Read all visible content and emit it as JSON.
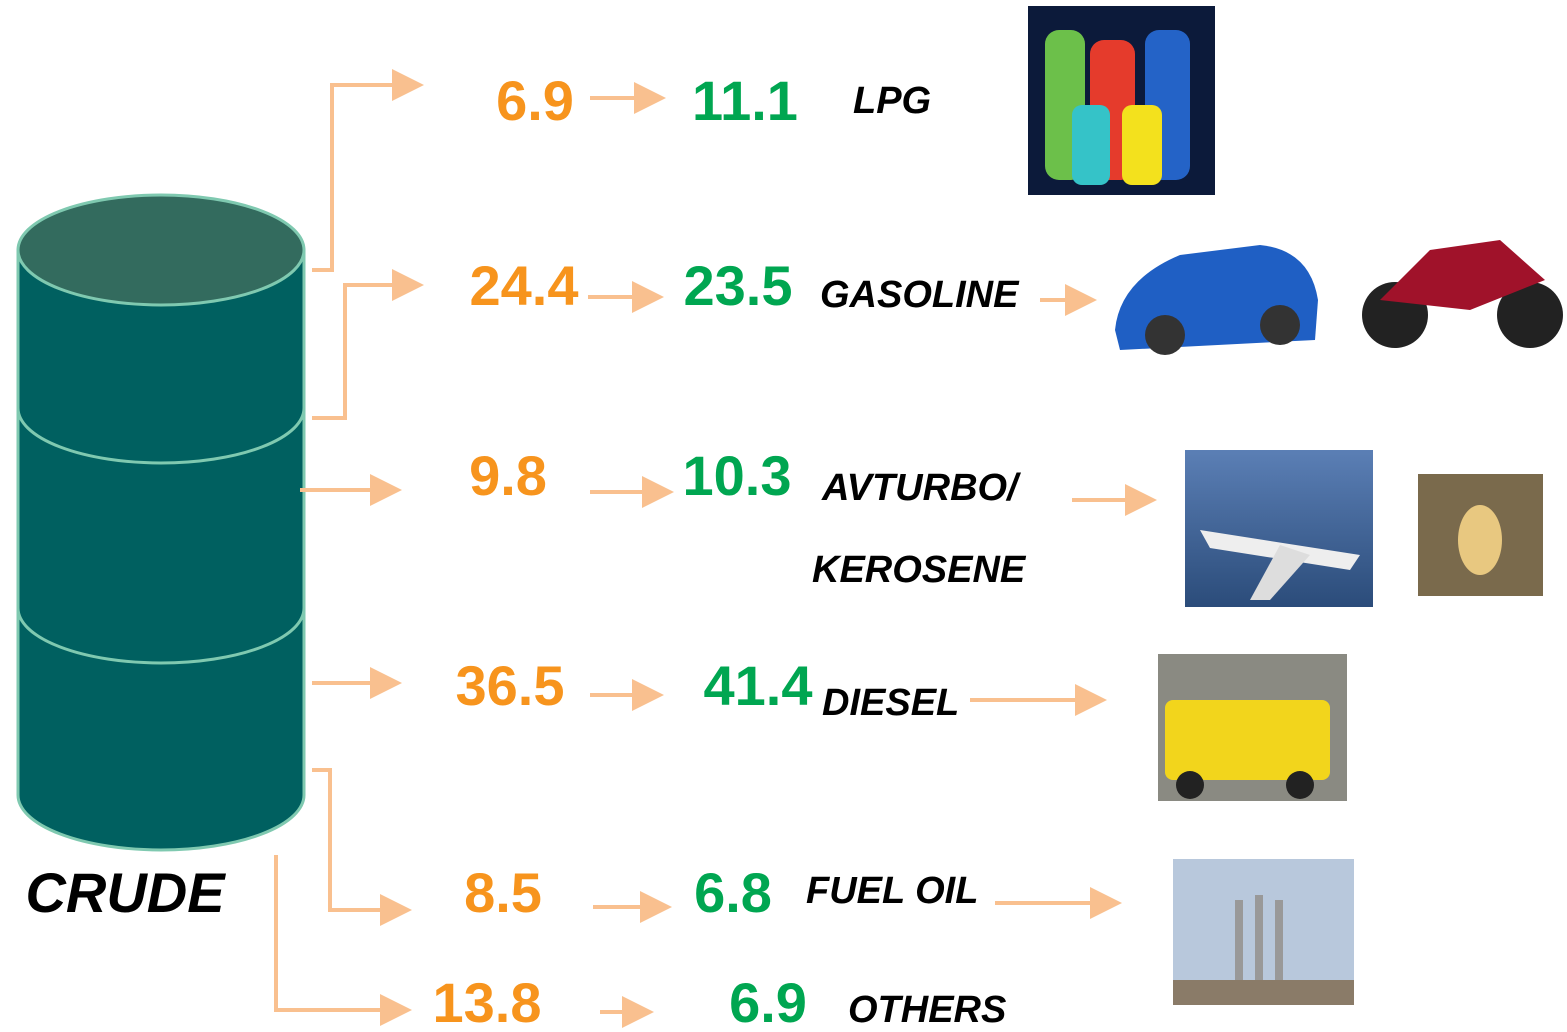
{
  "source": {
    "label": "CRUDE"
  },
  "products": [
    {
      "from": 6.9,
      "to": 11.1,
      "name_lines": [
        "LPG"
      ]
    },
    {
      "from": 24.4,
      "to": 23.5,
      "name_lines": [
        "GASOLINE"
      ]
    },
    {
      "from": 9.8,
      "to": 10.3,
      "name_lines": [
        "AVTURBO/",
        "KEROSENE"
      ]
    },
    {
      "from": 36.5,
      "to": 41.4,
      "name_lines": [
        "DIESEL"
      ]
    },
    {
      "from": 8.5,
      "to": 6.8,
      "name_lines": [
        "FUEL OIL"
      ]
    },
    {
      "from": 13.8,
      "to": 6.9,
      "name_lines": [
        "OTHERS"
      ]
    }
  ]
}
